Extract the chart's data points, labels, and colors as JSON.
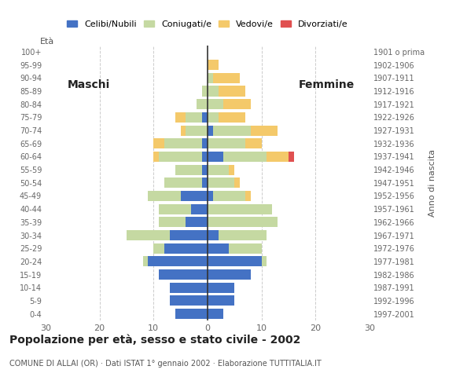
{
  "age_groups": [
    "0-4",
    "5-9",
    "10-14",
    "15-19",
    "20-24",
    "25-29",
    "30-34",
    "35-39",
    "40-44",
    "45-49",
    "50-54",
    "55-59",
    "60-64",
    "65-69",
    "70-74",
    "75-79",
    "80-84",
    "85-89",
    "90-94",
    "95-99",
    "100+"
  ],
  "birth_years": [
    "1997-2001",
    "1992-1996",
    "1987-1991",
    "1982-1986",
    "1977-1981",
    "1972-1976",
    "1967-1971",
    "1962-1966",
    "1957-1961",
    "1952-1956",
    "1947-1951",
    "1942-1946",
    "1937-1941",
    "1932-1936",
    "1927-1931",
    "1922-1926",
    "1917-1921",
    "1912-1916",
    "1907-1911",
    "1902-1906",
    "1901 o prima"
  ],
  "males": {
    "celibe": [
      6,
      7,
      7,
      9,
      11,
      8,
      7,
      4,
      3,
      5,
      1,
      1,
      1,
      1,
      0,
      1,
      0,
      0,
      0,
      0,
      0
    ],
    "coniugato": [
      0,
      0,
      0,
      0,
      1,
      2,
      8,
      5,
      6,
      6,
      7,
      5,
      8,
      7,
      4,
      3,
      2,
      1,
      0,
      0,
      0
    ],
    "vedovo": [
      0,
      0,
      0,
      0,
      0,
      0,
      0,
      0,
      0,
      0,
      0,
      0,
      1,
      2,
      1,
      2,
      0,
      0,
      0,
      0,
      0
    ],
    "divorziato": [
      0,
      0,
      0,
      0,
      0,
      0,
      0,
      0,
      0,
      0,
      0,
      0,
      0,
      0,
      0,
      0,
      0,
      0,
      0,
      0,
      0
    ]
  },
  "females": {
    "nubile": [
      3,
      5,
      5,
      8,
      10,
      4,
      2,
      0,
      0,
      1,
      0,
      0,
      3,
      0,
      1,
      0,
      0,
      0,
      0,
      0,
      0
    ],
    "coniugata": [
      0,
      0,
      0,
      0,
      1,
      6,
      9,
      13,
      12,
      6,
      5,
      4,
      8,
      7,
      7,
      2,
      3,
      2,
      1,
      0,
      0
    ],
    "vedova": [
      0,
      0,
      0,
      0,
      0,
      0,
      0,
      0,
      0,
      1,
      1,
      1,
      4,
      3,
      5,
      5,
      5,
      5,
      5,
      2,
      0
    ],
    "divorziata": [
      0,
      0,
      0,
      0,
      0,
      0,
      0,
      0,
      0,
      0,
      0,
      0,
      1,
      0,
      0,
      0,
      0,
      0,
      0,
      0,
      0
    ]
  },
  "color_celibe": "#4472c4",
  "color_coniugato": "#c5d9a2",
  "color_vedovo": "#f4c96a",
  "color_divorziato": "#e05050",
  "xlim": 30,
  "title": "Popolazione per età, sesso e stato civile - 2002",
  "subtitle": "COMUNE DI ALLAI (OR) · Dati ISTAT 1° gennaio 2002 · Elaborazione TUTTITALIA.IT",
  "ylabel_age": "Età",
  "ylabel_birth": "Anno di nascita",
  "label_maschi": "Maschi",
  "label_femmine": "Femmine",
  "legend_celibe": "Celibi/Nubili",
  "legend_coniugato": "Coniugati/e",
  "legend_vedovo": "Vedovi/e",
  "legend_divorziato": "Divorziati/e"
}
